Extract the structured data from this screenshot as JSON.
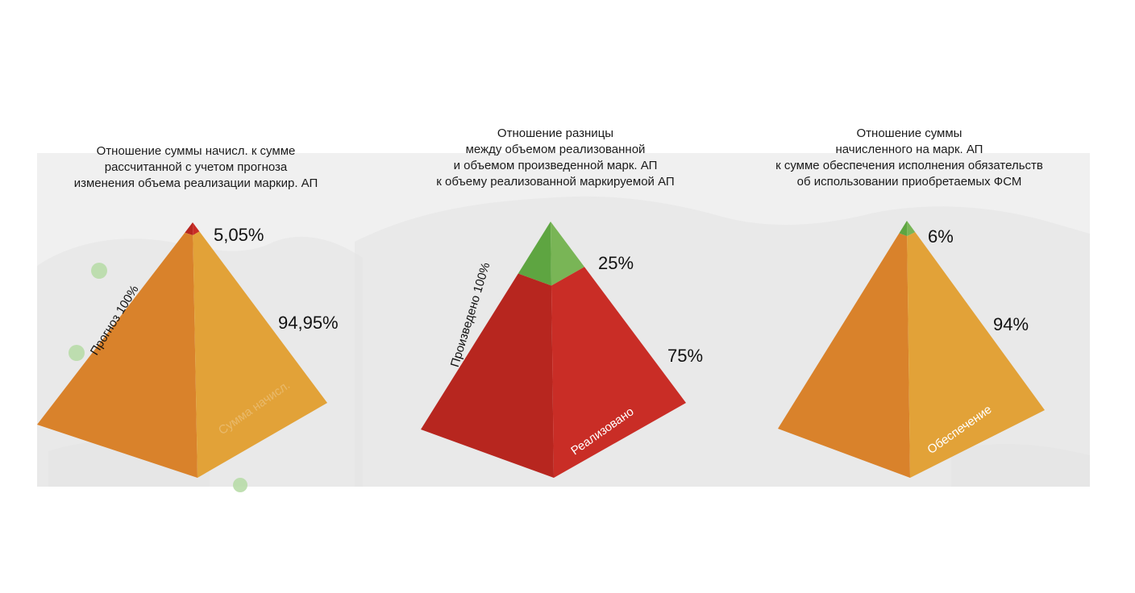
{
  "colors": {
    "page_bg": "#ffffff",
    "map_bg": "#f0f0f0",
    "map_land": "#e3e3e3",
    "orange_left": "#d9822b",
    "orange_right": "#e2a238",
    "red_left": "#b7261f",
    "red_right": "#c92d26",
    "green_left": "#5ea541",
    "green_right": "#79b556",
    "map_dot": "#b8dca8"
  },
  "chart_data": [
    {
      "type": "pyramid",
      "title": [
        "Отношение суммы начисл. к сумме",
        "рассчитанной с учетом прогноза",
        "изменения объема реализации маркир. АП"
      ],
      "side_label": "Прогноз 100%",
      "face_label": "Сумма начисл.",
      "segments": [
        {
          "label": "5,05%",
          "value": 5.05,
          "color": "red"
        },
        {
          "label": "94,95%",
          "value": 94.95,
          "color": "orange"
        }
      ]
    },
    {
      "type": "pyramid",
      "title": [
        "Отношение разницы",
        "между объемом реализованной",
        "и объемом произведенной марк. АП",
        "к объему реализованной маркируемой АП"
      ],
      "side_label": "Произведено 100%",
      "face_label": "Реализовано",
      "segments": [
        {
          "label": "25%",
          "value": 25,
          "color": "green"
        },
        {
          "label": "75%",
          "value": 75,
          "color": "red"
        }
      ]
    },
    {
      "type": "pyramid",
      "title": [
        "Отношение суммы",
        "начисленного  на марк. АП",
        "к сумме обеспечения исполнения обязательств",
        "об использовании приобретаемых ФСМ"
      ],
      "side_label": "",
      "face_label": "Обеспечение",
      "segments": [
        {
          "label": "6%",
          "value": 6,
          "color": "green"
        },
        {
          "label": "94%",
          "value": 94,
          "color": "orange"
        }
      ]
    }
  ]
}
